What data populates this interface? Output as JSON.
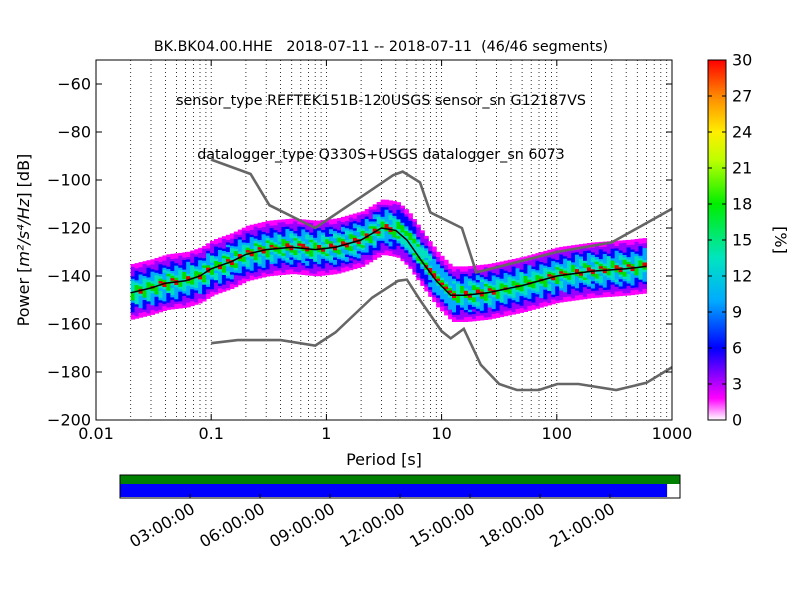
{
  "chart_data": {
    "type": "heatmap",
    "title_lines": [
      "BK.BK04.00.HHE   2018-07-11 -- 2018-07-11  (46/46 segments)",
      "sensor_type REFTEK151B-120USGS sensor_sn G12187VS",
      "datalogger_type Q330S+USGS datalogger_sn 6073"
    ],
    "xlabel": "Period [s]",
    "ylabel_prefix": "Power [",
    "ylabel_math": "m²/s⁴/Hz",
    "ylabel_suffix": "] [dB]",
    "x_scale": "log",
    "xlim": [
      0.01,
      1000
    ],
    "ylim": [
      -200,
      -50
    ],
    "x_ticks": [
      {
        "value": 0.01,
        "label": "0.01"
      },
      {
        "value": 0.1,
        "label": "0.1"
      },
      {
        "value": 1,
        "label": "1"
      },
      {
        "value": 10,
        "label": "10"
      },
      {
        "value": 100,
        "label": "100"
      },
      {
        "value": 1000,
        "label": "1000"
      }
    ],
    "y_ticks": [
      {
        "value": -60,
        "label": "−60"
      },
      {
        "value": -80,
        "label": "−80"
      },
      {
        "value": -100,
        "label": "−100"
      },
      {
        "value": -120,
        "label": "−120"
      },
      {
        "value": -140,
        "label": "−140"
      },
      {
        "value": -160,
        "label": "−160"
      },
      {
        "value": -180,
        "label": "−180"
      },
      {
        "value": -200,
        "label": "−200"
      }
    ],
    "grid": "vertical dotted at decades and sub-decades",
    "colorbar": {
      "label": "[%]",
      "range": [
        0,
        30
      ],
      "ticks": [
        "0",
        "3",
        "6",
        "9",
        "12",
        "15",
        "18",
        "21",
        "24",
        "27",
        "30"
      ],
      "colormap": "pqlx"
    },
    "noise_models": [
      {
        "name": "new high noise model",
        "points": [
          [
            0.1,
            -91.5
          ],
          [
            0.22,
            -97.5
          ],
          [
            0.32,
            -110.5
          ],
          [
            0.8,
            -120
          ],
          [
            3.8,
            -98
          ],
          [
            4.6,
            -96.5
          ],
          [
            6.5,
            -101
          ],
          [
            8,
            -113.5
          ],
          [
            15,
            -120
          ],
          [
            20,
            -138.5
          ],
          [
            100,
            -130
          ],
          [
            300,
            -126
          ],
          [
            1000,
            -112
          ]
        ]
      },
      {
        "name": "new low noise model",
        "points": [
          [
            0.1,
            -168
          ],
          [
            0.17,
            -166.7
          ],
          [
            0.4,
            -166.7
          ],
          [
            0.8,
            -169
          ],
          [
            1.2,
            -163.5
          ],
          [
            2.5,
            -149
          ],
          [
            4.2,
            -142
          ],
          [
            5,
            -141.5
          ],
          [
            6.5,
            -150
          ],
          [
            10,
            -163
          ],
          [
            12,
            -166
          ],
          [
            15.6,
            -162
          ],
          [
            21.9,
            -177
          ],
          [
            31.6,
            -185
          ],
          [
            45,
            -187.5
          ],
          [
            70,
            -187.5
          ],
          [
            101,
            -185
          ],
          [
            154,
            -185
          ],
          [
            328,
            -187.5
          ],
          [
            600,
            -184.5
          ],
          [
            1000,
            -178
          ]
        ]
      }
    ],
    "psd_median_points": [
      [
        0.02,
        -147
      ],
      [
        0.03,
        -145
      ],
      [
        0.04,
        -143
      ],
      [
        0.06,
        -142
      ],
      [
        0.08,
        -140
      ],
      [
        0.1,
        -137
      ],
      [
        0.15,
        -134
      ],
      [
        0.2,
        -131
      ],
      [
        0.3,
        -129
      ],
      [
        0.5,
        -128
      ],
      [
        0.8,
        -129
      ],
      [
        1.2,
        -128
      ],
      [
        2,
        -125
      ],
      [
        3,
        -120
      ],
      [
        4,
        -121
      ],
      [
        5,
        -125
      ],
      [
        7,
        -135
      ],
      [
        9,
        -142
      ],
      [
        12,
        -148
      ],
      [
        16,
        -148
      ],
      [
        25,
        -147
      ],
      [
        50,
        -144
      ],
      [
        100,
        -140
      ],
      [
        200,
        -138
      ],
      [
        400,
        -137
      ],
      [
        600,
        -136
      ]
    ],
    "psd_spread_db": 6
  },
  "timeline": {
    "tick_labels": [
      "03:00:00",
      "06:00:00",
      "09:00:00",
      "12:00:00",
      "15:00:00",
      "18:00:00",
      "21:00:00"
    ],
    "data_coverage_fraction": 1.0,
    "gap_free_coverage_fraction": 0.977,
    "colors": {
      "data": "#008000",
      "coverage": "#0000ff"
    }
  }
}
